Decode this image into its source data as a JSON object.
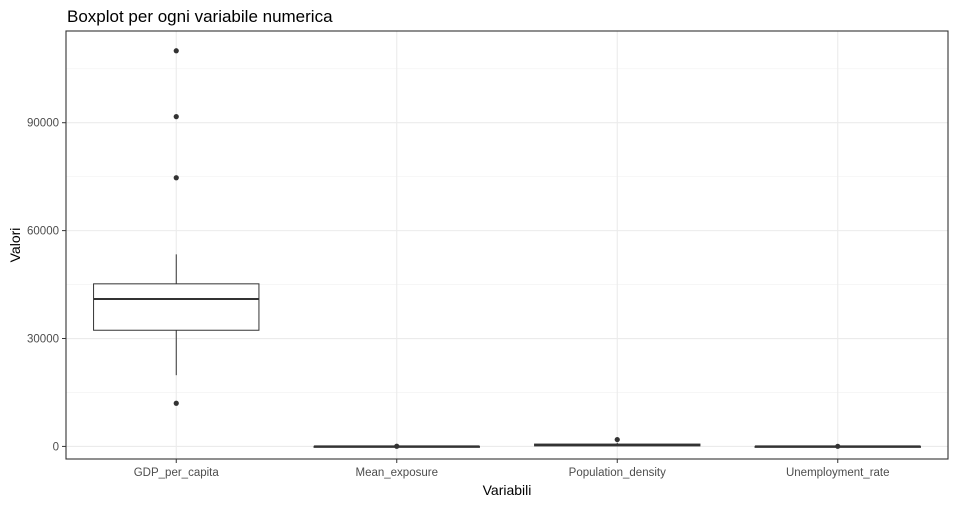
{
  "chart_data": {
    "type": "boxplot",
    "title": "Boxplot per ogni variabile numerica",
    "xlabel": "Variabili",
    "ylabel": "Valori",
    "ylim": [
      -3500,
      115500
    ],
    "y_ticks": [
      0,
      30000,
      60000,
      90000
    ],
    "y_tick_labels": [
      "0",
      "30000",
      "60000",
      "90000"
    ],
    "grid": true,
    "categories": [
      "GDP_per_capita",
      "Mean_exposure",
      "Population_density",
      "Unemployment_rate"
    ],
    "boxes": [
      {
        "category": "GDP_per_capita",
        "whisker_low": 19800,
        "q1": 32300,
        "median": 41000,
        "q3": 45200,
        "whisker_high": 53400,
        "outliers": [
          12000,
          74700,
          91700,
          110000
        ]
      },
      {
        "category": "Mean_exposure",
        "whisker_low": 5,
        "q1": 8,
        "median": 12,
        "q3": 16,
        "whisker_high": 25,
        "outliers": [
          40
        ]
      },
      {
        "category": "Population_density",
        "whisker_low": 20,
        "q1": 150,
        "median": 350,
        "q3": 650,
        "whisker_high": 1000,
        "outliers": [
          1900
        ]
      },
      {
        "category": "Unemployment_rate",
        "whisker_low": 2,
        "q1": 5,
        "median": 8,
        "q3": 12,
        "whisker_high": 20,
        "outliers": [
          30
        ]
      }
    ]
  }
}
